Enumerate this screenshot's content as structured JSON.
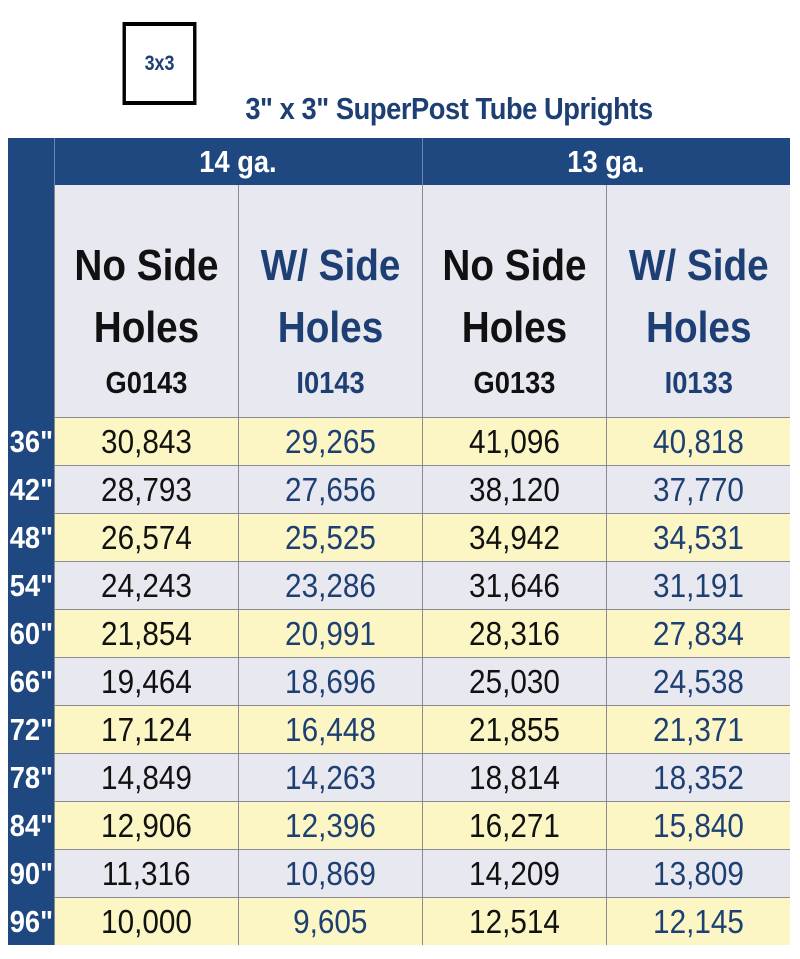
{
  "logo": {
    "label": "3x3"
  },
  "title": "3\" x 3\" SuperPost Tube Uprights",
  "gauges": [
    "14 ga.",
    "13 ga."
  ],
  "columns": [
    {
      "line1": "No Side",
      "line2": "Holes",
      "code": "G0143",
      "color": "#111111"
    },
    {
      "line1": "W/ Side",
      "line2": "Holes",
      "code": "I0143",
      "color": "#1d3f73"
    },
    {
      "line1": "No Side",
      "line2": "Holes",
      "code": "G0133",
      "color": "#111111"
    },
    {
      "line1": "W/ Side",
      "line2": "Holes",
      "code": "I0133",
      "color": "#1d3f73"
    }
  ],
  "rows": [
    {
      "length": "36\"",
      "values": [
        "30,843",
        "29,265",
        "41,096",
        "40,818"
      ]
    },
    {
      "length": "42\"",
      "values": [
        "28,793",
        "27,656",
        "38,120",
        "37,770"
      ]
    },
    {
      "length": "48\"",
      "values": [
        "26,574",
        "25,525",
        "34,942",
        "34,531"
      ]
    },
    {
      "length": "54\"",
      "values": [
        "24,243",
        "23,286",
        "31,646",
        "31,191"
      ]
    },
    {
      "length": "60\"",
      "values": [
        "21,854",
        "20,991",
        "28,316",
        "27,834"
      ]
    },
    {
      "length": "66\"",
      "values": [
        "19,464",
        "18,696",
        "25,030",
        "24,538"
      ]
    },
    {
      "length": "72\"",
      "values": [
        "17,124",
        "16,448",
        "21,855",
        "21,371"
      ]
    },
    {
      "length": "78\"",
      "values": [
        "14,849",
        "14,263",
        "18,814",
        "18,352"
      ]
    },
    {
      "length": "84\"",
      "values": [
        "12,906",
        "12,396",
        "16,271",
        "15,840"
      ]
    },
    {
      "length": "90\"",
      "values": [
        "11,316",
        "10,869",
        "14,209",
        "13,809"
      ]
    },
    {
      "length": "96\"",
      "values": [
        "10,000",
        "9,605",
        "12,514",
        "12,145"
      ]
    }
  ],
  "colors": {
    "header_navy": "#1f4880",
    "text_blue": "#1d3f73",
    "row_yellow": "#fbf6c4",
    "row_gray": "#e8e8f0"
  }
}
